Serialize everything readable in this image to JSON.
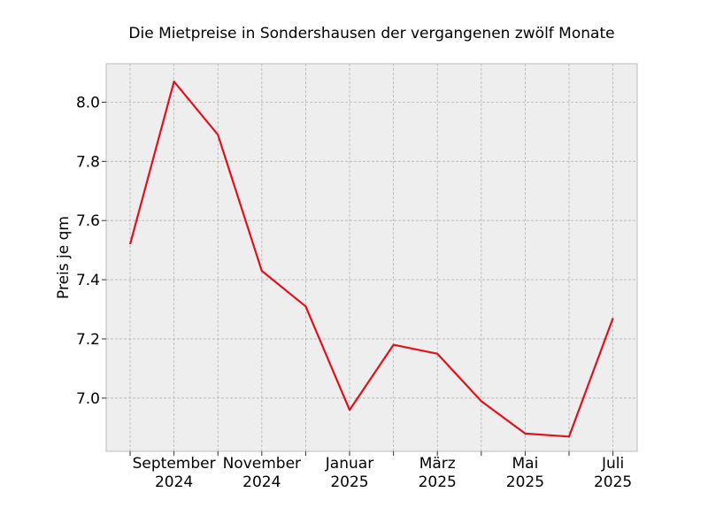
{
  "chart_data": {
    "type": "line",
    "title": "Die Mietpreise in Sondershausen der vergangenen zwölf Monate",
    "xlabel": "",
    "ylabel": "Preis je qm",
    "x": [
      "2024-08",
      "2024-09",
      "2024-10",
      "2024-11",
      "2024-12",
      "2025-01",
      "2025-02",
      "2025-03",
      "2025-04",
      "2025-05",
      "2025-06",
      "2025-07"
    ],
    "series": [
      {
        "values": [
          7.52,
          8.07,
          7.89,
          7.43,
          7.31,
          6.96,
          7.18,
          7.15,
          6.99,
          6.88,
          6.87,
          7.27
        ]
      }
    ],
    "ylim": [
      6.82,
      8.13
    ],
    "yticks": [
      "7.0",
      "7.2",
      "7.4",
      "7.6",
      "7.8",
      "8.0"
    ],
    "xtick_labels": [
      {
        "month": "September",
        "year": "2024"
      },
      {
        "month": "November",
        "year": "2024"
      },
      {
        "month": "Januar",
        "year": "2025"
      },
      {
        "month": "März",
        "year": "2025"
      },
      {
        "month": "Mai",
        "year": "2025"
      },
      {
        "month": "Juli",
        "year": "2025"
      }
    ],
    "grid": true,
    "line_color": "#e3111b",
    "background_color": "#eeeeee"
  }
}
